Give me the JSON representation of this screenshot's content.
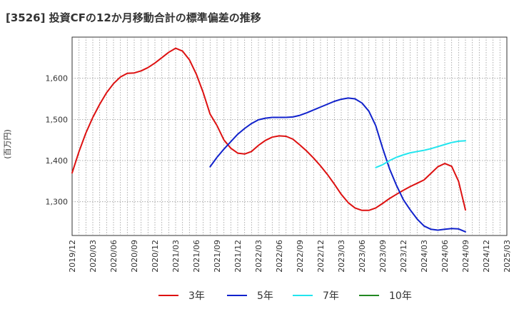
{
  "chart_data": {
    "type": "line",
    "title": "[3526]  投資CFの12か月移動合計の標準偏差の推移",
    "ylabel": "(百万円)",
    "xlabel": "",
    "ylim": [
      1218,
      1700
    ],
    "yticks": [
      1300,
      1400,
      1500,
      1600
    ],
    "ytick_labels": [
      "1,300",
      "1,400",
      "1,500",
      "1,600"
    ],
    "xlim": [
      "2019-12",
      "2025-03"
    ],
    "xtick_labels": [
      "2019/12",
      "2020/03",
      "2020/06",
      "2020/09",
      "2020/12",
      "2021/03",
      "2021/06",
      "2021/09",
      "2021/12",
      "2022/03",
      "2022/06",
      "2022/09",
      "2022/12",
      "2023/03",
      "2023/06",
      "2023/09",
      "2023/12",
      "2024/03",
      "2024/06",
      "2024/09",
      "2024/12",
      "2025/03"
    ],
    "grid": true,
    "legend": "bottom",
    "series": [
      {
        "name": "3年",
        "color": "#dd1111",
        "points": [
          [
            "2019-12",
            1370
          ],
          [
            "2020-01",
            1422
          ],
          [
            "2020-02",
            1467
          ],
          [
            "2020-03",
            1505
          ],
          [
            "2020-04",
            1537
          ],
          [
            "2020-05",
            1565
          ],
          [
            "2020-06",
            1587
          ],
          [
            "2020-07",
            1603
          ],
          [
            "2020-08",
            1612
          ],
          [
            "2020-09",
            1613
          ],
          [
            "2020-10",
            1618
          ],
          [
            "2020-11",
            1626
          ],
          [
            "2020-12",
            1637
          ],
          [
            "2021-01",
            1650
          ],
          [
            "2021-02",
            1663
          ],
          [
            "2021-03",
            1673
          ],
          [
            "2021-04",
            1666
          ],
          [
            "2021-05",
            1645
          ],
          [
            "2021-06",
            1610
          ],
          [
            "2021-07",
            1565
          ],
          [
            "2021-08",
            1513
          ],
          [
            "2021-09",
            1485
          ],
          [
            "2021-10",
            1450
          ],
          [
            "2021-11",
            1430
          ],
          [
            "2021-12",
            1418
          ],
          [
            "2022-01",
            1416
          ],
          [
            "2022-02",
            1422
          ],
          [
            "2022-03",
            1437
          ],
          [
            "2022-04",
            1449
          ],
          [
            "2022-05",
            1457
          ],
          [
            "2022-06",
            1460
          ],
          [
            "2022-07",
            1459
          ],
          [
            "2022-08",
            1452
          ],
          [
            "2022-09",
            1438
          ],
          [
            "2022-10",
            1423
          ],
          [
            "2022-11",
            1406
          ],
          [
            "2022-12",
            1387
          ],
          [
            "2023-01",
            1366
          ],
          [
            "2023-02",
            1343
          ],
          [
            "2023-03",
            1318
          ],
          [
            "2023-04",
            1298
          ],
          [
            "2023-05",
            1285
          ],
          [
            "2023-06",
            1279
          ],
          [
            "2023-07",
            1279
          ],
          [
            "2023-08",
            1285
          ],
          [
            "2023-09",
            1296
          ],
          [
            "2023-10",
            1308
          ],
          [
            "2023-11",
            1318
          ],
          [
            "2023-12",
            1328
          ],
          [
            "2024-01",
            1337
          ],
          [
            "2024-02",
            1345
          ],
          [
            "2024-03",
            1353
          ],
          [
            "2024-04",
            1369
          ],
          [
            "2024-05",
            1385
          ],
          [
            "2024-06",
            1393
          ],
          [
            "2024-07",
            1386
          ],
          [
            "2024-08",
            1350
          ],
          [
            "2024-09",
            1280
          ]
        ]
      },
      {
        "name": "5年",
        "color": "#1122cc",
        "points": [
          [
            "2021-08",
            1385
          ],
          [
            "2021-09",
            1408
          ],
          [
            "2021-10",
            1428
          ],
          [
            "2021-11",
            1446
          ],
          [
            "2021-12",
            1464
          ],
          [
            "2022-01",
            1478
          ],
          [
            "2022-02",
            1490
          ],
          [
            "2022-03",
            1499
          ],
          [
            "2022-04",
            1503
          ],
          [
            "2022-05",
            1505
          ],
          [
            "2022-06",
            1505
          ],
          [
            "2022-07",
            1505
          ],
          [
            "2022-08",
            1506
          ],
          [
            "2022-09",
            1510
          ],
          [
            "2022-10",
            1516
          ],
          [
            "2022-11",
            1523
          ],
          [
            "2022-12",
            1530
          ],
          [
            "2023-01",
            1537
          ],
          [
            "2023-02",
            1544
          ],
          [
            "2023-03",
            1549
          ],
          [
            "2023-04",
            1552
          ],
          [
            "2023-05",
            1550
          ],
          [
            "2023-06",
            1540
          ],
          [
            "2023-07",
            1520
          ],
          [
            "2023-08",
            1485
          ],
          [
            "2023-09",
            1430
          ],
          [
            "2023-10",
            1380
          ],
          [
            "2023-11",
            1340
          ],
          [
            "2023-12",
            1305
          ],
          [
            "2024-01",
            1280
          ],
          [
            "2024-02",
            1258
          ],
          [
            "2024-03",
            1241
          ],
          [
            "2024-04",
            1233
          ],
          [
            "2024-05",
            1231
          ],
          [
            "2024-06",
            1233
          ],
          [
            "2024-07",
            1235
          ],
          [
            "2024-08",
            1234
          ],
          [
            "2024-09",
            1227
          ]
        ]
      },
      {
        "name": "7年",
        "color": "#22e5ee",
        "points": [
          [
            "2023-08",
            1383
          ],
          [
            "2023-09",
            1390
          ],
          [
            "2023-10",
            1400
          ],
          [
            "2023-11",
            1408
          ],
          [
            "2023-12",
            1414
          ],
          [
            "2024-01",
            1419
          ],
          [
            "2024-02",
            1422
          ],
          [
            "2024-03",
            1425
          ],
          [
            "2024-04",
            1429
          ],
          [
            "2024-05",
            1434
          ],
          [
            "2024-06",
            1439
          ],
          [
            "2024-07",
            1444
          ],
          [
            "2024-08",
            1447
          ],
          [
            "2024-09",
            1448
          ]
        ]
      },
      {
        "name": "10年",
        "color": "#228822",
        "points": []
      }
    ]
  }
}
